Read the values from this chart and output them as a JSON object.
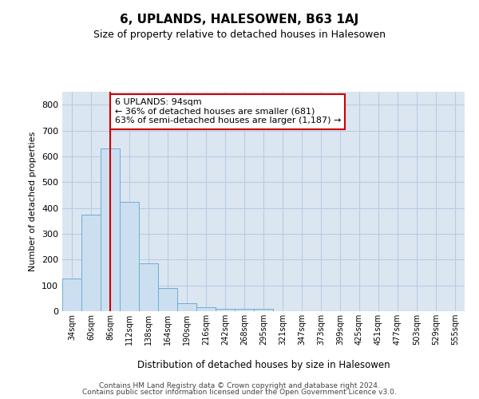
{
  "title": "6, UPLANDS, HALESOWEN, B63 1AJ",
  "subtitle": "Size of property relative to detached houses in Halesowen",
  "xlabel": "Distribution of detached houses by size in Halesowen",
  "ylabel": "Number of detached properties",
  "bar_values": [
    128,
    375,
    632,
    425,
    185,
    90,
    30,
    15,
    8,
    8,
    8,
    0,
    0,
    0,
    0,
    0,
    0,
    0,
    0,
    0,
    0
  ],
  "bar_labels": [
    "34sqm",
    "60sqm",
    "86sqm",
    "112sqm",
    "138sqm",
    "164sqm",
    "190sqm",
    "216sqm",
    "242sqm",
    "268sqm",
    "295sqm",
    "321sqm",
    "347sqm",
    "373sqm",
    "399sqm",
    "425sqm",
    "451sqm",
    "477sqm",
    "503sqm",
    "529sqm",
    "555sqm"
  ],
  "bar_color": "#ccdff0",
  "bar_edgecolor": "#6aaed6",
  "ylim": [
    0,
    850
  ],
  "yticks": [
    0,
    100,
    200,
    300,
    400,
    500,
    600,
    700,
    800
  ],
  "property_line_x": 2.5,
  "property_line_color": "#cc0000",
  "annotation_text": "6 UPLANDS: 94sqm\n← 36% of detached houses are smaller (681)\n63% of semi-detached houses are larger (1,187) →",
  "annotation_box_color": "#ffffff",
  "annotation_box_edgecolor": "#cc0000",
  "grid_color": "#b8cce4",
  "plot_bg_color": "#dce6f1",
  "footer_line1": "Contains HM Land Registry data © Crown copyright and database right 2024.",
  "footer_line2": "Contains public sector information licensed under the Open Government Licence v3.0."
}
